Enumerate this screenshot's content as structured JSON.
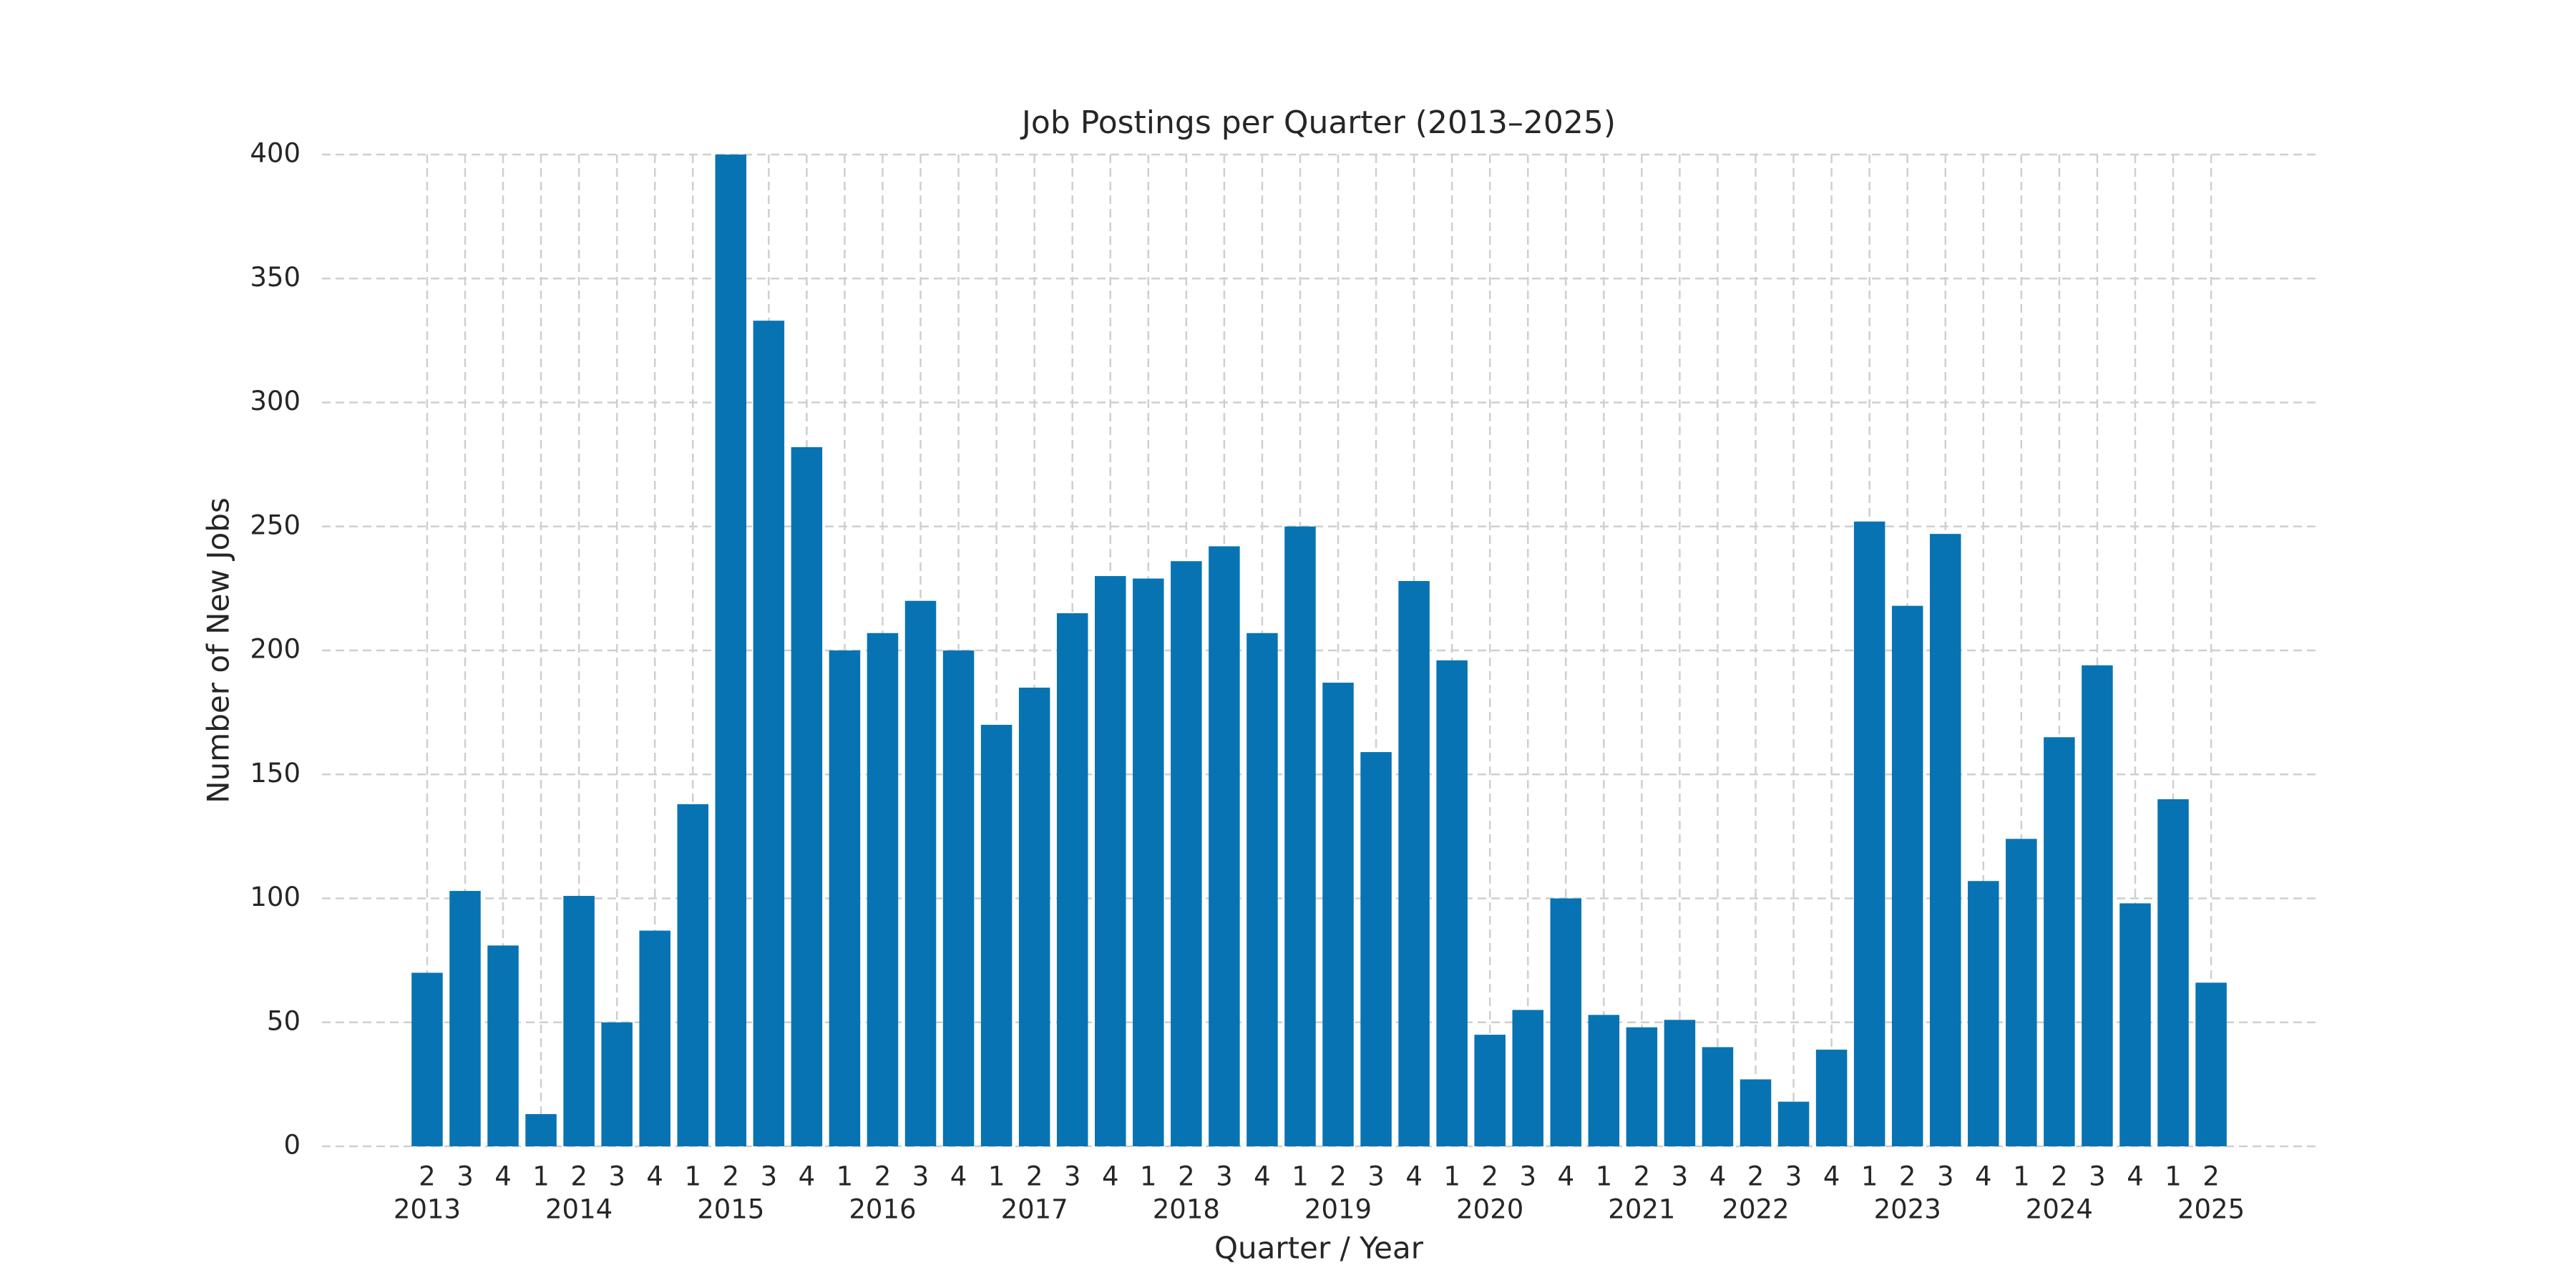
{
  "chart_data": {
    "type": "bar",
    "title": "Job Postings per Quarter (2013–2025)",
    "x_label": "Quarter / Year",
    "y_label": "Number of New Jobs",
    "categories": [
      "2",
      "3",
      "4",
      "1",
      "2",
      "3",
      "4",
      "1",
      "2",
      "3",
      "4",
      "1",
      "2",
      "3",
      "4",
      "1",
      "2",
      "3",
      "4",
      "1",
      "2",
      "3",
      "4",
      "1",
      "2",
      "3",
      "4",
      "1",
      "2",
      "3",
      "4",
      "1",
      "2",
      "3",
      "4",
      "2",
      "3",
      "4",
      "1",
      "2",
      "3",
      "4",
      "1",
      "2",
      "3",
      "4",
      "1",
      "2"
    ],
    "years": [
      "2013",
      null,
      null,
      null,
      "2014",
      null,
      null,
      null,
      "2015",
      null,
      null,
      null,
      "2016",
      null,
      null,
      null,
      "2017",
      null,
      null,
      null,
      "2018",
      null,
      null,
      null,
      "2019",
      null,
      null,
      null,
      "2020",
      null,
      null,
      null,
      "2021",
      null,
      null,
      "2022",
      null,
      null,
      null,
      "2023",
      null,
      null,
      null,
      "2024",
      null,
      null,
      null,
      "2025"
    ],
    "values": [
      70,
      103,
      81,
      13,
      101,
      50,
      87,
      138,
      400,
      333,
      282,
      200,
      207,
      220,
      200,
      170,
      185,
      215,
      230,
      229,
      236,
      242,
      207,
      250,
      187,
      159,
      228,
      196,
      45,
      55,
      100,
      53,
      48,
      51,
      40,
      27,
      18,
      39,
      252,
      218,
      247,
      107,
      124,
      165,
      194,
      98,
      140,
      66
    ],
    "color": "#0773b3",
    "ylim": [
      0,
      400
    ],
    "yticks": [
      0,
      50,
      100,
      150,
      200,
      250,
      300,
      350,
      400
    ],
    "grid": true
  }
}
